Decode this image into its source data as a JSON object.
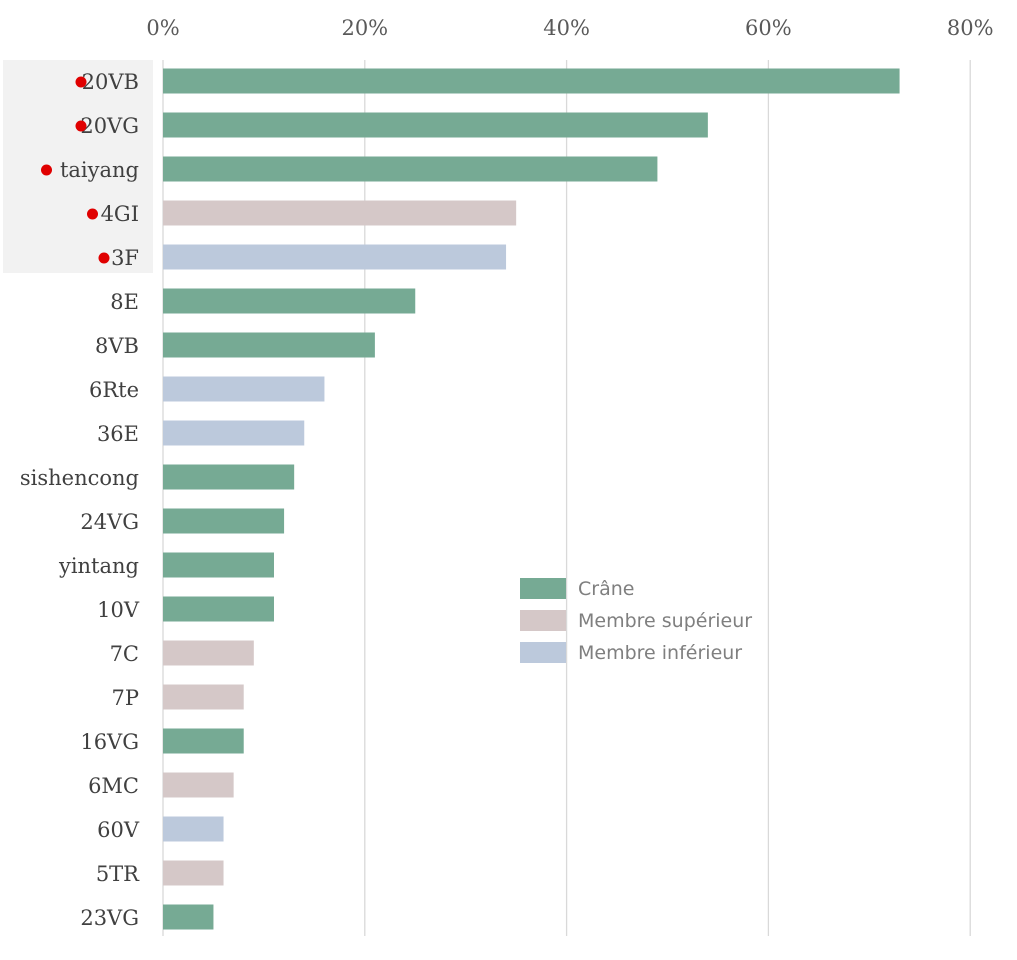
{
  "chart_data": {
    "type": "bar",
    "orientation": "horizontal",
    "xlim": [
      0,
      80
    ],
    "x_ticks": [
      "0%",
      "20%",
      "40%",
      "60%",
      "80%"
    ],
    "x_tick_values": [
      0,
      20,
      40,
      60,
      80
    ],
    "grid": "vertical",
    "categories": [
      "20VB",
      "20VG",
      "taiyang",
      "4GI",
      "3F",
      "8E",
      "8VB",
      "6Rte",
      "36E",
      "sishencong",
      "24VG",
      "yintang",
      "10V",
      "7C",
      "7P",
      "16VG",
      "6MC",
      "60V",
      "5TR",
      "23VG"
    ],
    "values": [
      73,
      54,
      49,
      35,
      34,
      25,
      21,
      16,
      14,
      13,
      12,
      11,
      11,
      9,
      8,
      8,
      7,
      6,
      6,
      5
    ],
    "groups": [
      "Crâne",
      "Crâne",
      "Crâne",
      "Membre supérieur",
      "Membre inférieur",
      "Crâne",
      "Crâne",
      "Membre inférieur",
      "Membre inférieur",
      "Crâne",
      "Crâne",
      "Crâne",
      "Crâne",
      "Membre supérieur",
      "Membre supérieur",
      "Crâne",
      "Membre supérieur",
      "Membre inférieur",
      "Membre supérieur",
      "Crâne"
    ],
    "highlighted_count": 5,
    "highlight_marker_color": "#e00000",
    "highlight_bg_color": "#f2f2f2",
    "legend": [
      {
        "name": "Crâne",
        "color": "#76aa94"
      },
      {
        "name": "Membre supérieur",
        "color": "#d5c8c8"
      },
      {
        "name": "Membre inférieur",
        "color": "#bcc9dc"
      }
    ],
    "legend_position": "center-right",
    "grid_color": "#d9d9d9"
  }
}
